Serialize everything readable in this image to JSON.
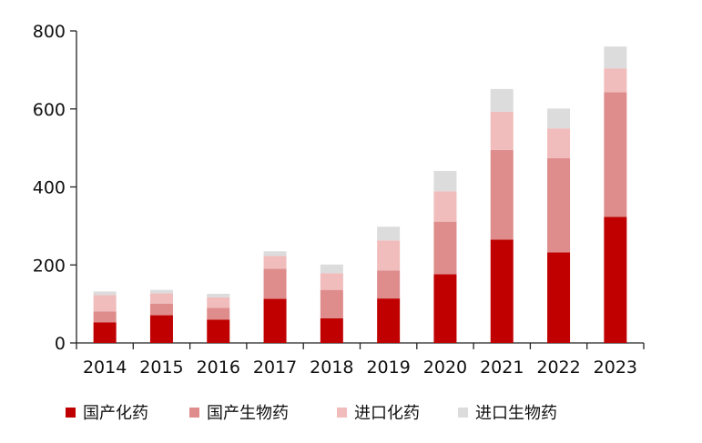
{
  "chart_data": {
    "type": "bar",
    "stacked": true,
    "categories": [
      "2014",
      "2015",
      "2016",
      "2017",
      "2018",
      "2019",
      "2020",
      "2021",
      "2022",
      "2023"
    ],
    "series": [
      {
        "name": "国产化药",
        "color": "#c00000",
        "values": [
          53,
          71,
          60,
          113,
          63,
          114,
          176,
          265,
          232,
          323
        ]
      },
      {
        "name": "国产生物药",
        "color": "#de8c8c",
        "values": [
          28,
          30,
          30,
          77,
          73,
          72,
          135,
          230,
          242,
          320
        ]
      },
      {
        "name": "进口化药",
        "color": "#f0bcbc",
        "values": [
          42,
          26,
          27,
          33,
          43,
          77,
          78,
          98,
          76,
          61
        ]
      },
      {
        "name": "进口生物药",
        "color": "#dcdcdc",
        "values": [
          9,
          9,
          9,
          12,
          22,
          35,
          52,
          58,
          51,
          56
        ]
      }
    ],
    "y_ticks": [
      0,
      200,
      400,
      600,
      800
    ],
    "ylim": [
      0,
      800
    ],
    "grid": false,
    "legend_position": "bottom"
  }
}
